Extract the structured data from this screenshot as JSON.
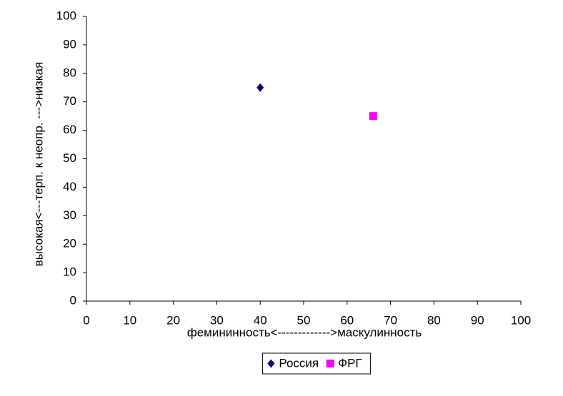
{
  "chart_data": {
    "type": "scatter",
    "xlabel": "фемининность<------------->маскулинность",
    "ylabel": "высокая<---терп. к неопр. --->низкая",
    "xlim": [
      0,
      100
    ],
    "xticks": [
      0,
      10,
      20,
      30,
      40,
      50,
      60,
      70,
      80,
      90,
      100
    ],
    "ylim": [
      0,
      100
    ],
    "yticks": [
      0,
      10,
      20,
      30,
      40,
      50,
      60,
      70,
      80,
      90,
      100
    ],
    "grid": false,
    "legend": "bottom",
    "series": [
      {
        "name": "Россия",
        "color": "#000080",
        "marker": "diamond",
        "x": [
          40
        ],
        "values": [
          75
        ]
      },
      {
        "name": "ФРГ",
        "color": "#ff00ff",
        "marker": "square",
        "x": [
          66
        ],
        "values": [
          65
        ]
      }
    ]
  }
}
